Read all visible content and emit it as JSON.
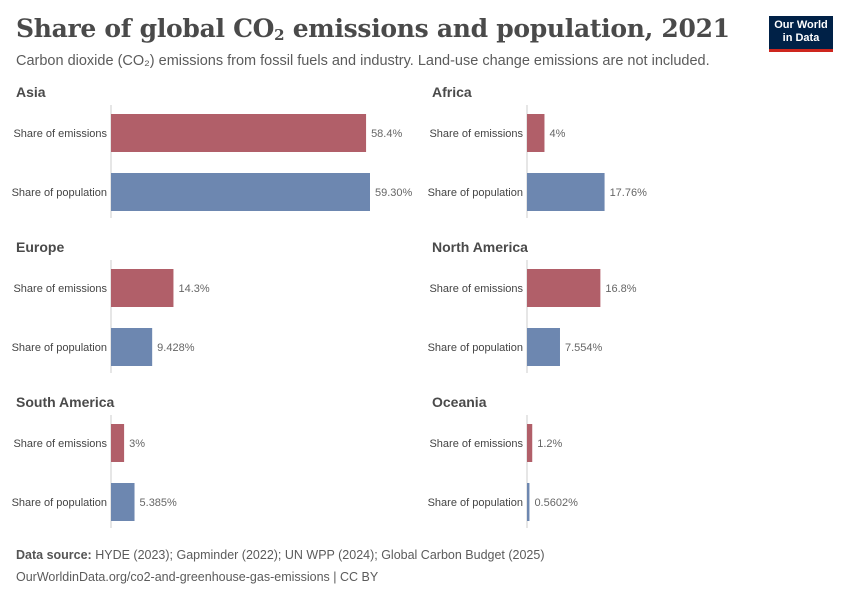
{
  "header": {
    "title_main": "Share of global CO",
    "title_sub": "2",
    "title_rest": " emissions and population, 2021",
    "subtitle": "Carbon dioxide (CO₂) emissions from fossil fuels and industry. Land-use change emissions are not included.",
    "logo_line1": "Our World",
    "logo_line2": "in Data"
  },
  "footer": {
    "source_label": "Data source:",
    "source_text": " HYDE (2023); Gapminder (2022); UN WPP (2024); Global Carbon Budget (2025)",
    "url_text": "OurWorldinData.org/co2-and-greenhouse-gas-emissions | CC BY"
  },
  "colors": {
    "emissions": "#b15f69",
    "population": "#6d87b0",
    "axis": "#cccccc",
    "label": "#444444",
    "value": "#666666"
  },
  "chart_data": {
    "type": "bar",
    "orientation": "horizontal",
    "facet": true,
    "categories": [
      "Share of emissions",
      "Share of population"
    ],
    "panels": [
      {
        "title": "Asia",
        "values": [
          58.4,
          59.3
        ],
        "labels": [
          "58.4%",
          "59.30%"
        ]
      },
      {
        "title": "Africa",
        "values": [
          4,
          17.76
        ],
        "labels": [
          "4%",
          "17.76%"
        ]
      },
      {
        "title": "Europe",
        "values": [
          14.3,
          9.428
        ],
        "labels": [
          "14.3%",
          "9.428%"
        ]
      },
      {
        "title": "North America",
        "values": [
          16.8,
          7.554
        ],
        "labels": [
          "16.8%",
          "7.554%"
        ]
      },
      {
        "title": "South America",
        "values": [
          3,
          5.385
        ],
        "labels": [
          "3%",
          "5.385%"
        ]
      },
      {
        "title": "Oceania",
        "values": [
          1.2,
          0.5602
        ],
        "labels": [
          "1.2%",
          "0.5602%"
        ]
      }
    ],
    "xlim": [
      0,
      59.3
    ]
  }
}
